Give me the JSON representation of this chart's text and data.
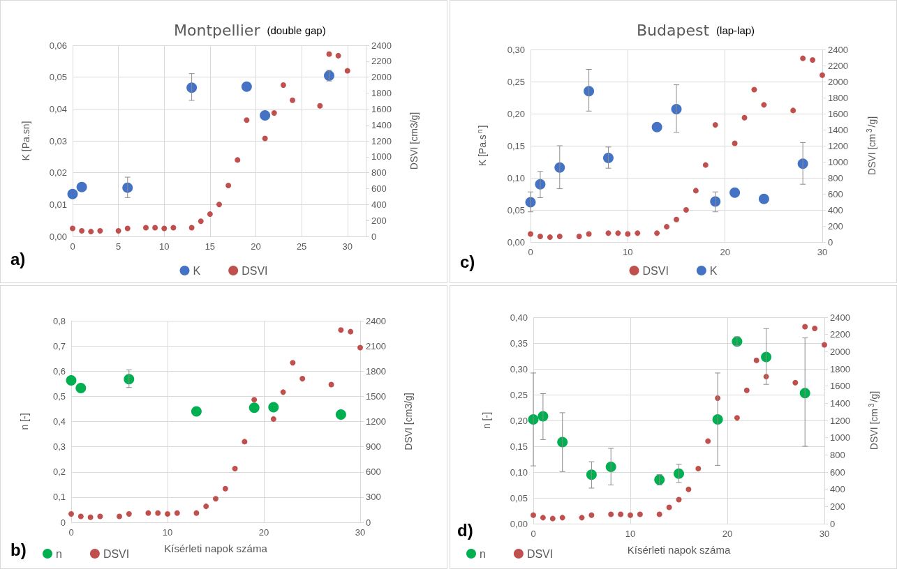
{
  "chart_data": [
    {
      "type": "scatter",
      "title": "Montpellier",
      "subtitle": "(double gap)",
      "ylabel": "K [Pa.sn]",
      "y2label": "DSVI [cm3/g]",
      "annotations": [
        "a)"
      ],
      "marker": "circle",
      "grid": true,
      "legend": "bottom",
      "xlim": [
        0,
        32
      ],
      "xticks": [
        0,
        5,
        10,
        15,
        20,
        25,
        30
      ],
      "ylim": [
        0,
        0.06
      ],
      "yticks": [
        {
          "value": 0,
          "label": "0,00"
        },
        {
          "value": 0.01,
          "label": "0,01"
        },
        {
          "value": 0.02,
          "label": "0,02"
        },
        {
          "value": 0.03,
          "label": "0,03"
        },
        {
          "value": 0.04,
          "label": "0,04"
        },
        {
          "value": 0.05,
          "label": "0,05"
        },
        {
          "value": 0.06,
          "label": "0,06"
        }
      ],
      "y2lim": [
        0,
        2400
      ],
      "y2ticks": [
        0,
        200,
        400,
        600,
        800,
        1000,
        1200,
        1400,
        1600,
        1800,
        2000,
        2200,
        2400
      ],
      "series": [
        {
          "name": "K",
          "color": "#4472c4",
          "x": [
            0,
            1,
            6,
            13,
            19,
            21,
            28
          ],
          "values": [
            0.0133,
            0.0155,
            0.0153,
            0.0467,
            0.047,
            0.038,
            0.0505
          ],
          "errors": [
            null,
            null,
            [
              0.0122,
              0.0186
            ],
            [
              0.0427,
              0.0511
            ],
            null,
            null,
            [
              0.0488,
              0.0522
            ]
          ]
        },
        {
          "name": "DSVI",
          "color": "#c0504d",
          "axis": "y2",
          "x": [
            0,
            1,
            2,
            3,
            5,
            6,
            8,
            9,
            10,
            11,
            13,
            14,
            15,
            16,
            17,
            18,
            19,
            21,
            22,
            23,
            24,
            27,
            28,
            29,
            30
          ],
          "values": [
            100,
            70,
            60,
            70,
            70,
            100,
            110,
            110,
            100,
            110,
            110,
            190,
            280,
            400,
            640,
            960,
            1460,
            1230,
            1550,
            1900,
            1710,
            1640,
            2290,
            2270,
            2080
          ]
        }
      ]
    },
    {
      "type": "scatter",
      "title": "Budapest",
      "subtitle": "(lap-lap)",
      "ylabel": "K [Pa.s$^{n}$]",
      "y2label": "DSVI [cm$^{3}$/g]",
      "annotations": [
        "c)"
      ],
      "marker": "circle",
      "grid": true,
      "legend": "bottom",
      "xlim": [
        0,
        30
      ],
      "xticks": [
        0,
        10,
        20,
        30
      ],
      "ylim": [
        0,
        0.3
      ],
      "yticks": [
        {
          "value": 0,
          "label": "0,00"
        },
        {
          "value": 0.05,
          "label": "0,05"
        },
        {
          "value": 0.1,
          "label": "0,10"
        },
        {
          "value": 0.15,
          "label": "0,15"
        },
        {
          "value": 0.2,
          "label": "0,20"
        },
        {
          "value": 0.25,
          "label": "0,25"
        },
        {
          "value": 0.3,
          "label": "0,30"
        }
      ],
      "y2lim": [
        0,
        2400
      ],
      "y2ticks": [
        0,
        200,
        400,
        600,
        800,
        1000,
        1200,
        1400,
        1600,
        1800,
        2000,
        2200,
        2400
      ],
      "series": [
        {
          "name": "DSVI",
          "color": "#c0504d",
          "axis": "y2",
          "x": [
            0,
            1,
            2,
            3,
            5,
            6,
            8,
            9,
            10,
            11,
            13,
            14,
            15,
            16,
            17,
            18,
            19,
            21,
            22,
            23,
            24,
            27,
            28,
            29,
            30
          ],
          "values": [
            100,
            70,
            60,
            70,
            70,
            100,
            110,
            110,
            100,
            110,
            110,
            190,
            280,
            400,
            640,
            960,
            1460,
            1230,
            1550,
            1900,
            1710,
            1640,
            2290,
            2270,
            2080
          ]
        },
        {
          "name": "K",
          "color": "#4472c4",
          "x": [
            0,
            1,
            3,
            6,
            8,
            13,
            15,
            19,
            21,
            24,
            28
          ],
          "values": [
            0.062,
            0.09,
            0.116,
            0.235,
            0.131,
            0.179,
            0.207,
            0.063,
            0.077,
            0.067,
            0.122
          ],
          "errors": [
            [
              0.047,
              0.078
            ],
            [
              0.069,
              0.11
            ],
            [
              0.083,
              0.15
            ],
            [
              0.204,
              0.269
            ],
            [
              0.115,
              0.148
            ],
            null,
            [
              0.171,
              0.245
            ],
            [
              0.047,
              0.078
            ],
            null,
            null,
            [
              0.09,
              0.155
            ]
          ]
        }
      ]
    },
    {
      "type": "scatter",
      "xlabel": "Kísérleti napok száma",
      "ylabel": "n [-]",
      "y2label": "DSVI [cm3/g]",
      "annotations": [
        "b)"
      ],
      "marker": "circle",
      "grid": true,
      "legend": "bottom left",
      "xlim": [
        0,
        30
      ],
      "xticks": [
        0,
        10,
        20,
        30
      ],
      "ylim": [
        0,
        0.8
      ],
      "yticks": [
        0,
        {
          "value": 0.1,
          "label": "0,1"
        },
        {
          "value": 0.2,
          "label": "0,2"
        },
        {
          "value": 0.3,
          "label": "0,3"
        },
        {
          "value": 0.4,
          "label": "0,4"
        },
        {
          "value": 0.5,
          "label": "0,5"
        },
        {
          "value": 0.6,
          "label": "0,6"
        },
        {
          "value": 0.7,
          "label": "0,7"
        },
        {
          "value": 0.8,
          "label": "0,8"
        }
      ],
      "y2lim": [
        0,
        2400
      ],
      "y2ticks": [
        0,
        300,
        600,
        900,
        1200,
        1500,
        1800,
        2100,
        2400
      ],
      "series": [
        {
          "name": "n",
          "color": "#00b050",
          "x": [
            0,
            1,
            6,
            13,
            19,
            21,
            28
          ],
          "values": [
            0.563,
            0.533,
            0.568,
            0.44,
            0.455,
            0.457,
            0.428
          ],
          "errors": [
            null,
            null,
            [
              0.535,
              0.605
            ],
            null,
            null,
            null,
            null
          ]
        },
        {
          "name": "DSVI",
          "color": "#c0504d",
          "axis": "y2",
          "x": [
            0,
            1,
            2,
            3,
            5,
            6,
            8,
            9,
            10,
            11,
            13,
            14,
            15,
            16,
            17,
            18,
            19,
            21,
            22,
            23,
            24,
            27,
            28,
            29,
            30
          ],
          "values": [
            100,
            70,
            60,
            70,
            70,
            100,
            110,
            110,
            100,
            110,
            110,
            190,
            280,
            400,
            640,
            960,
            1460,
            1230,
            1550,
            1900,
            1710,
            1640,
            2290,
            2270,
            2080
          ]
        }
      ]
    },
    {
      "type": "scatter",
      "xlabel": "Kísérleti napok száma",
      "ylabel": "n [-]",
      "y2label": "DSVI [cm$^{3}$/g]",
      "annotations": [
        "d)"
      ],
      "marker": "circle",
      "grid": true,
      "legend": "bottom left",
      "xlim": [
        0,
        30
      ],
      "xticks": [
        0,
        10,
        20,
        30
      ],
      "ylim": [
        0,
        0.4
      ],
      "yticks": [
        {
          "value": 0,
          "label": "0,00"
        },
        {
          "value": 0.05,
          "label": "0,05"
        },
        {
          "value": 0.1,
          "label": "0,10"
        },
        {
          "value": 0.15,
          "label": "0,15"
        },
        {
          "value": 0.2,
          "label": "0,20"
        },
        {
          "value": 0.25,
          "label": "0,25"
        },
        {
          "value": 0.3,
          "label": "0,30"
        },
        {
          "value": 0.35,
          "label": "0,35"
        },
        {
          "value": 0.4,
          "label": "0,40"
        }
      ],
      "y2lim": [
        0,
        2400
      ],
      "y2ticks": [
        0,
        200,
        400,
        600,
        800,
        1000,
        1200,
        1400,
        1600,
        1800,
        2000,
        2200,
        2400
      ],
      "series": [
        {
          "name": "n",
          "color": "#00b050",
          "x": [
            0,
            1,
            3,
            6,
            8,
            13,
            15,
            19,
            21,
            24,
            28
          ],
          "values": [
            0.202,
            0.208,
            0.158,
            0.095,
            0.11,
            0.085,
            0.097,
            0.202,
            0.353,
            0.323,
            0.253
          ],
          "errors": [
            [
              0.112,
              0.292
            ],
            [
              0.163,
              0.252
            ],
            [
              0.101,
              0.215
            ],
            [
              0.069,
              0.12
            ],
            [
              0.075,
              0.146
            ],
            [
              0.075,
              0.095
            ],
            [
              0.08,
              0.115
            ],
            [
              0.113,
              0.292
            ],
            [
              0.345,
              0.362
            ],
            [
              0.27,
              0.378
            ],
            [
              0.15,
              0.36
            ]
          ]
        },
        {
          "name": "DSVI",
          "color": "#c0504d",
          "axis": "y2",
          "x": [
            0,
            1,
            2,
            3,
            5,
            6,
            8,
            9,
            10,
            11,
            13,
            14,
            15,
            16,
            17,
            18,
            19,
            21,
            22,
            23,
            24,
            27,
            28,
            29,
            30
          ],
          "values": [
            100,
            70,
            60,
            70,
            70,
            100,
            110,
            110,
            100,
            110,
            110,
            190,
            280,
            400,
            640,
            960,
            1460,
            1230,
            1550,
            1900,
            1710,
            1640,
            2290,
            2270,
            2080
          ]
        }
      ]
    }
  ]
}
